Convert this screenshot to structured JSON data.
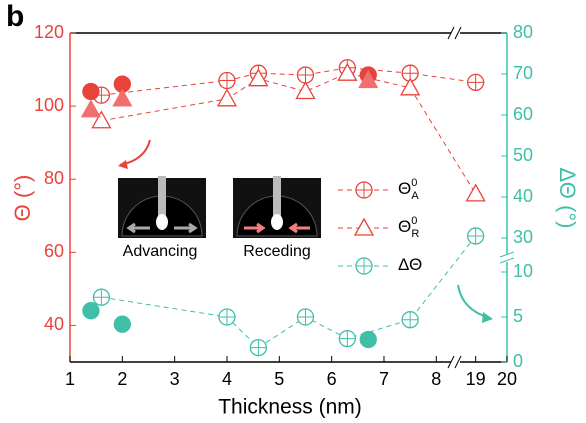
{
  "chart_data": {
    "type": "scatter",
    "panel_label": "b",
    "x_label": "Thickness (nm)",
    "y_label": "Θ (°)",
    "y2_label": "ΔΘ (°)",
    "xlim": [
      1,
      20
    ],
    "xbreak": [
      8.3,
      18.5
    ],
    "xticks": [
      1,
      2,
      3,
      4,
      5,
      6,
      7,
      8,
      19,
      20
    ],
    "ylim": [
      30,
      120
    ],
    "yticks": [
      40,
      60,
      80,
      100,
      120
    ],
    "y2lim": [
      0,
      80
    ],
    "y2break": [
      10,
      30
    ],
    "y2ticks": [
      0,
      5,
      10,
      30,
      40,
      50,
      60,
      70,
      80
    ],
    "annotations": [
      "Advancing",
      "Receding"
    ],
    "series": [
      {
        "name": "Θ",
        "sup": "0",
        "sub": "A",
        "marker": "circle",
        "filled": false,
        "color": "#e8433a",
        "line": true,
        "x": [
          1.6,
          4.0,
          4.6,
          5.5,
          6.3,
          7.5,
          19
        ],
        "values": [
          103,
          107,
          109,
          108.5,
          110.5,
          109,
          106.5
        ]
      },
      {
        "name": "Θ",
        "sup": "0",
        "sub": "R",
        "marker": "triangle",
        "filled": false,
        "color": "#e8433a",
        "line": true,
        "x": [
          1.6,
          4.0,
          4.6,
          5.5,
          6.3,
          7.5,
          19
        ],
        "values": [
          96,
          102,
          107.5,
          104,
          109,
          105,
          76
        ]
      },
      {
        "name": "ΔΘ",
        "marker": "circle",
        "filled": false,
        "color": "#3fbfa8",
        "line": true,
        "axis": "y2",
        "x": [
          1.6,
          4.0,
          4.6,
          5.5,
          6.3,
          7.5,
          19
        ],
        "values": [
          7.2,
          5,
          1.6,
          5,
          2.6,
          4.7,
          30.5
        ]
      },
      {
        "marker": "circle",
        "filled": true,
        "color": "#e8433a",
        "line": false,
        "x": [
          1.4,
          2.0,
          6.7
        ],
        "values": [
          104,
          106,
          108.5
        ]
      },
      {
        "marker": "triangle",
        "filled": true,
        "color": "#f07070",
        "line": false,
        "x": [
          1.4,
          2.0,
          6.7
        ],
        "values": [
          99,
          102,
          107
        ]
      },
      {
        "marker": "circle",
        "filled": true,
        "color": "#3fbfa8",
        "line": false,
        "axis": "y2",
        "x": [
          1.4,
          2.0,
          6.7
        ],
        "values": [
          5.7,
          4.2,
          2.5
        ]
      }
    ]
  }
}
